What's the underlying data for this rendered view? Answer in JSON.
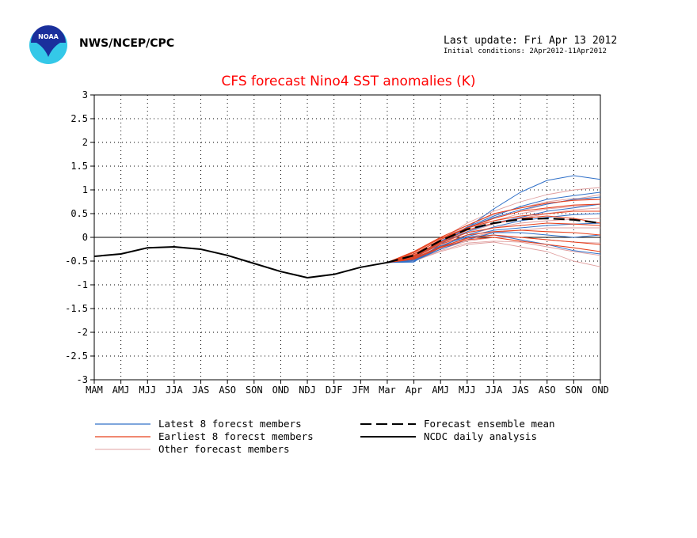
{
  "header": {
    "org": "NWS/NCEP/CPC",
    "last_update": "Last update: Fri Apr 13 2012",
    "initial_conditions": "Initial conditions: 2Apr2012-11Apr2012"
  },
  "colors": {
    "latest": "#3070c8",
    "earliest": "#e8401c",
    "other": "#e0a0a0",
    "mean": "#000000",
    "analysis": "#000000",
    "title": "#ff0000",
    "logo_blue": "#1a2f9c",
    "logo_cyan": "#34c8e8"
  },
  "chart_data": {
    "type": "line",
    "title": "CFS forecast Nino4 SST anomalies (K)",
    "categories": [
      "MAM",
      "AMJ",
      "MJJ",
      "JJA",
      "JAS",
      "ASO",
      "SON",
      "OND",
      "NDJ",
      "DJF",
      "JFM",
      "Mar",
      "Apr",
      "AMJ",
      "MJJ",
      "JJA",
      "JAS",
      "ASO",
      "SON",
      "OND"
    ],
    "ylim": [
      -3,
      3
    ],
    "yticks": [
      "3",
      "2.5",
      "2",
      "1.5",
      "1",
      "0.5",
      "0",
      "-0.5",
      "-1",
      "-1.5",
      "-2",
      "-2.5",
      "-3"
    ],
    "grid": true,
    "legend_position": "bottom",
    "legend": {
      "latest": "Latest 8 forecst members",
      "earliest": "Earliest 8 forecst members",
      "other": "Other forecast members",
      "mean": "Forecast ensemble mean",
      "analysis": "NCDC daily analysis"
    },
    "analysis": {
      "x": [
        0,
        1,
        2,
        3,
        4,
        5,
        6,
        7,
        8,
        9,
        10,
        11
      ],
      "values": [
        -0.4,
        -0.35,
        -0.22,
        -0.2,
        -0.25,
        -0.38,
        -0.55,
        -0.72,
        -0.85,
        -0.78,
        -0.63,
        -0.53
      ]
    },
    "ensemble_mean": {
      "x": [
        11,
        12,
        13,
        14,
        15,
        16,
        17,
        18,
        19
      ],
      "values": [
        -0.53,
        -0.38,
        -0.07,
        0.17,
        0.3,
        0.38,
        0.4,
        0.37,
        0.3
      ]
    },
    "latest_members": [
      {
        "x": [
          11,
          12,
          13,
          14,
          15,
          16,
          17,
          18,
          19
        ],
        "values": [
          -0.53,
          -0.52,
          -0.15,
          0.2,
          0.6,
          0.95,
          1.2,
          1.3,
          1.22
        ]
      },
      {
        "x": [
          11,
          12,
          13,
          14,
          15,
          16,
          17,
          18,
          19
        ],
        "values": [
          -0.53,
          -0.45,
          -0.1,
          0.22,
          0.45,
          0.65,
          0.8,
          0.88,
          0.95
        ]
      },
      {
        "x": [
          11,
          12,
          13,
          14,
          15,
          16,
          17,
          18,
          19
        ],
        "values": [
          -0.53,
          -0.4,
          -0.08,
          0.2,
          0.42,
          0.58,
          0.7,
          0.8,
          0.85
        ]
      },
      {
        "x": [
          11,
          12,
          13,
          14,
          15,
          16,
          17,
          18,
          19
        ],
        "values": [
          -0.53,
          -0.42,
          -0.12,
          0.12,
          0.3,
          0.42,
          0.55,
          0.62,
          0.7
        ]
      },
      {
        "x": [
          11,
          12,
          13,
          14,
          15,
          16,
          17,
          18,
          19
        ],
        "values": [
          -0.53,
          -0.48,
          -0.2,
          0.05,
          0.22,
          0.35,
          0.42,
          0.48,
          0.5
        ]
      },
      {
        "x": [
          11,
          12,
          13,
          14,
          15,
          16,
          17,
          18,
          19
        ],
        "values": [
          -0.53,
          -0.46,
          -0.18,
          0.02,
          0.15,
          0.2,
          0.25,
          0.28,
          0.3
        ]
      },
      {
        "x": [
          11,
          12,
          13,
          14,
          15,
          16,
          17,
          18,
          19
        ],
        "values": [
          -0.53,
          -0.5,
          -0.25,
          -0.05,
          0.1,
          0.1,
          0.05,
          0.0,
          0.05
        ]
      },
      {
        "x": [
          11,
          12,
          13,
          14,
          15,
          16,
          17,
          18,
          19
        ],
        "values": [
          -0.53,
          -0.5,
          -0.22,
          0.0,
          0.05,
          -0.05,
          -0.15,
          -0.28,
          -0.35
        ]
      }
    ],
    "earliest_members": [
      {
        "x": [
          11,
          12,
          13,
          14,
          15,
          16,
          17,
          18,
          19
        ],
        "values": [
          -0.53,
          -0.3,
          0.0,
          0.25,
          0.5,
          0.62,
          0.72,
          0.78,
          0.8
        ]
      },
      {
        "x": [
          11,
          12,
          13,
          14,
          15,
          16,
          17,
          18,
          19
        ],
        "values": [
          -0.53,
          -0.32,
          -0.02,
          0.2,
          0.4,
          0.55,
          0.62,
          0.68,
          0.7
        ]
      },
      {
        "x": [
          11,
          12,
          13,
          14,
          15,
          16,
          17,
          18,
          19
        ],
        "values": [
          -0.53,
          -0.35,
          -0.05,
          0.2,
          0.35,
          0.45,
          0.5,
          0.55,
          0.55
        ]
      },
      {
        "x": [
          11,
          12,
          13,
          14,
          15,
          16,
          17,
          18,
          19
        ],
        "values": [
          -0.53,
          -0.38,
          -0.1,
          0.15,
          0.3,
          0.4,
          0.45,
          0.4,
          0.3
        ]
      },
      {
        "x": [
          11,
          12,
          13,
          14,
          15,
          16,
          17,
          18,
          19
        ],
        "values": [
          -0.53,
          -0.4,
          -0.12,
          0.1,
          0.2,
          0.25,
          0.3,
          0.28,
          0.25
        ]
      },
      {
        "x": [
          11,
          12,
          13,
          14,
          15,
          16,
          17,
          18,
          19
        ],
        "values": [
          -0.53,
          -0.42,
          -0.15,
          0.05,
          0.12,
          0.15,
          0.12,
          0.1,
          0.05
        ]
      },
      {
        "x": [
          11,
          12,
          13,
          14,
          15,
          16,
          17,
          18,
          19
        ],
        "values": [
          -0.53,
          -0.44,
          -0.2,
          -0.02,
          0.05,
          0.0,
          -0.05,
          -0.1,
          -0.15
        ]
      },
      {
        "x": [
          11,
          12,
          13,
          14,
          15,
          16,
          17,
          18,
          19
        ],
        "values": [
          -0.53,
          -0.46,
          -0.22,
          -0.05,
          0.0,
          -0.08,
          -0.15,
          -0.22,
          -0.3
        ]
      }
    ],
    "other_members": [
      {
        "x": [
          11,
          12,
          13,
          14,
          15,
          16,
          17,
          18,
          19
        ],
        "values": [
          -0.53,
          -0.35,
          -0.05,
          0.3,
          0.55,
          0.75,
          0.9,
          1.0,
          1.05
        ]
      },
      {
        "x": [
          11,
          12,
          13,
          14,
          15,
          16,
          17,
          18,
          19
        ],
        "values": [
          -0.53,
          -0.4,
          -0.1,
          0.18,
          0.4,
          0.55,
          0.7,
          0.8,
          0.9
        ]
      },
      {
        "x": [
          11,
          12,
          13,
          14,
          15,
          16,
          17,
          18,
          19
        ],
        "values": [
          -0.53,
          -0.38,
          -0.08,
          0.15,
          0.35,
          0.5,
          0.6,
          0.65,
          0.7
        ]
      },
      {
        "x": [
          11,
          12,
          13,
          14,
          15,
          16,
          17,
          18,
          19
        ],
        "values": [
          -0.53,
          -0.44,
          -0.18,
          0.05,
          0.2,
          0.3,
          0.35,
          0.38,
          0.4
        ]
      },
      {
        "x": [
          11,
          12,
          13,
          14,
          15,
          16,
          17,
          18,
          19
        ],
        "values": [
          -0.53,
          -0.46,
          -0.22,
          0.0,
          0.1,
          0.15,
          0.2,
          0.2,
          0.2
        ]
      },
      {
        "x": [
          11,
          12,
          13,
          14,
          15,
          16,
          17,
          18,
          19
        ],
        "values": [
          -0.53,
          -0.48,
          -0.25,
          -0.08,
          0.0,
          0.0,
          -0.05,
          -0.1,
          -0.12
        ]
      },
      {
        "x": [
          11,
          12,
          13,
          14,
          15,
          16,
          17,
          18,
          19
        ],
        "values": [
          -0.53,
          -0.5,
          -0.28,
          -0.12,
          -0.08,
          -0.1,
          -0.2,
          -0.3,
          -0.38
        ]
      },
      {
        "x": [
          11,
          12,
          13,
          14,
          15,
          16,
          17,
          18,
          19
        ],
        "values": [
          -0.53,
          -0.5,
          -0.3,
          -0.15,
          -0.1,
          -0.2,
          -0.3,
          -0.5,
          -0.62
        ]
      },
      {
        "x": [
          11,
          12,
          13,
          14,
          15,
          16,
          17,
          18,
          19
        ],
        "values": [
          -0.53,
          -0.36,
          -0.04,
          0.25,
          0.48,
          0.62,
          0.75,
          0.82,
          0.8
        ]
      },
      {
        "x": [
          11,
          12,
          13,
          14,
          15,
          16,
          17,
          18,
          19
        ],
        "values": [
          -0.53,
          -0.42,
          -0.14,
          0.1,
          0.28,
          0.4,
          0.5,
          0.58,
          0.62
        ]
      }
    ]
  }
}
